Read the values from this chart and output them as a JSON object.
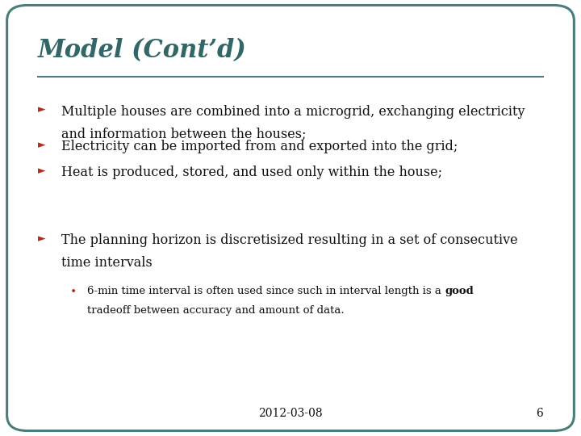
{
  "title": "Model (Cont’d)",
  "title_color": "#336666",
  "title_fontsize": 22,
  "background_color": "#FFFFFF",
  "border_color": "#4A7C7C",
  "line_color": "#4A7C7C",
  "arrow_color": "#B03020",
  "bullet_color": "#B03020",
  "body_color": "#111111",
  "body_fontsize": 11.5,
  "sub_fontsize": 9.5,
  "footer_text": "2012-03-08",
  "footer_number": "6",
  "bullets": [
    [
      "Multiple houses are combined into a microgrid, exchanging electricity",
      "and information between the houses;"
    ],
    [
      "Electricity can be imported from and exported into the grid;"
    ],
    [
      "Heat is produced, stored, and used only within the house;"
    ]
  ],
  "bullet2_lines": [
    "The planning horizon is discretisized resulting in a set of consecutive",
    "time intervals"
  ],
  "sub_line1_pre": "6-min time interval is often used since such in interval length is a ",
  "sub_line1_bold": "good",
  "sub_line2": "tradeoff between accuracy and amount of data."
}
